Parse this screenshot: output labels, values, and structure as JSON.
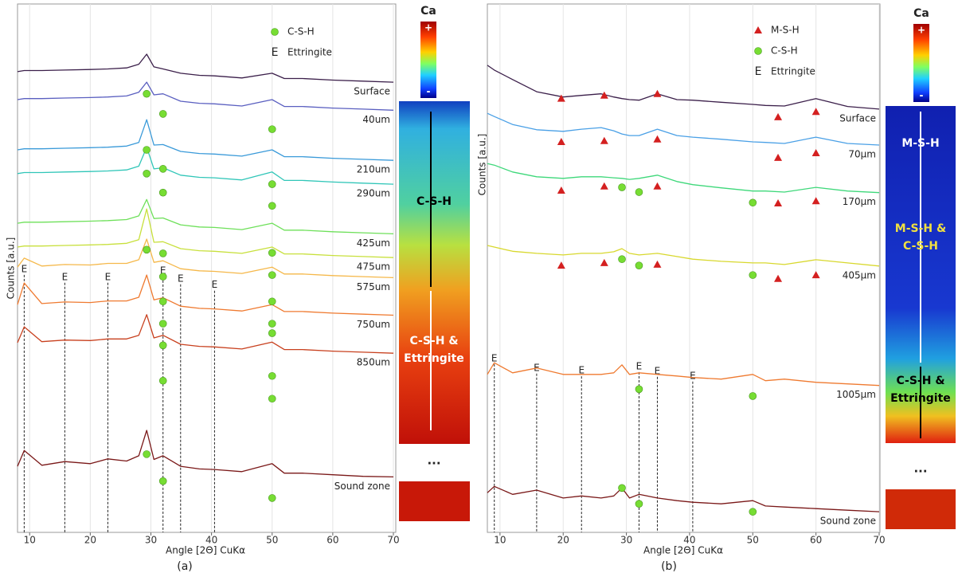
{
  "chart_data": [
    {
      "type": "line",
      "panel_label": "(a)",
      "x_label": "Angle [2Θ] CuKα",
      "y_label": "Counts [a.u.]",
      "xlim": [
        8,
        70
      ],
      "xticks": [
        10,
        20,
        30,
        40,
        50,
        60,
        70
      ],
      "ylim": [
        0,
        100
      ],
      "grid": true,
      "x": [
        8,
        9.1,
        12,
        15.8,
        20,
        22.9,
        26,
        28,
        29.3,
        30.5,
        32,
        34.9,
        38,
        40.5,
        45,
        50,
        52,
        55,
        60,
        65,
        70
      ],
      "series": [
        {
          "name": "Surface",
          "color": "#3b1f4a",
          "values": [
            87.2,
            87.4,
            87.4,
            87.5,
            87.6,
            87.7,
            87.9,
            88.6,
            90.5,
            88.1,
            87.7,
            86.9,
            86.5,
            86.4,
            86.0,
            86.9,
            85.9,
            85.9,
            85.6,
            85.4,
            85.2
          ]
        },
        {
          "name": "40um",
          "color": "#5a5fc0",
          "values": [
            81.9,
            82.1,
            82.1,
            82.2,
            82.3,
            82.4,
            82.6,
            83.3,
            85.2,
            82.8,
            83.0,
            81.6,
            81.2,
            81.1,
            80.7,
            81.9,
            80.6,
            80.6,
            80.3,
            80.1,
            79.9
          ]
        },
        {
          "name": "210um",
          "color": "#3a9ad9",
          "values": [
            72.4,
            72.6,
            72.6,
            72.7,
            72.8,
            72.9,
            73.1,
            73.8,
            78.1,
            73.3,
            73.4,
            72.1,
            71.7,
            71.6,
            71.2,
            72.4,
            71.1,
            71.1,
            70.8,
            70.6,
            70.4
          ]
        },
        {
          "name": "290um",
          "color": "#30c6b8",
          "values": [
            67.9,
            68.1,
            68.1,
            68.2,
            68.3,
            68.4,
            68.6,
            69.3,
            72.9,
            68.8,
            69.0,
            67.6,
            67.2,
            67.1,
            66.7,
            68.2,
            66.6,
            66.6,
            66.3,
            66.1,
            65.9
          ]
        },
        {
          "name": "425um",
          "color": "#6ee05a",
          "values": [
            58.5,
            58.7,
            58.7,
            58.8,
            58.9,
            59.0,
            59.2,
            59.9,
            63.0,
            59.4,
            59.5,
            58.2,
            57.8,
            57.7,
            57.3,
            58.5,
            57.2,
            57.2,
            56.9,
            56.7,
            56.5
          ]
        },
        {
          "name": "475um",
          "color": "#c8e03c",
          "values": [
            54.0,
            54.2,
            54.2,
            54.3,
            54.4,
            54.5,
            54.7,
            55.4,
            61.2,
            54.9,
            55.0,
            53.7,
            53.3,
            53.2,
            52.8,
            54.0,
            52.7,
            52.7,
            52.4,
            52.2,
            52.0
          ]
        },
        {
          "name": "575um",
          "color": "#f5b84a",
          "values": [
            50.2,
            51.9,
            50.4,
            50.7,
            50.6,
            50.9,
            50.9,
            51.6,
            55.5,
            51.1,
            51.4,
            49.9,
            49.5,
            49.4,
            49.0,
            50.2,
            48.9,
            48.9,
            48.6,
            48.4,
            48.2
          ]
        },
        {
          "name": "750um",
          "color": "#ef7a30",
          "values": [
            43.1,
            47.2,
            43.3,
            43.6,
            43.5,
            43.8,
            43.8,
            44.5,
            48.7,
            44.0,
            44.4,
            42.8,
            42.4,
            42.3,
            41.9,
            43.1,
            41.8,
            41.8,
            41.5,
            41.3,
            41.1
          ]
        },
        {
          "name": "850um",
          "color": "#c8401e",
          "values": [
            35.9,
            38.9,
            36.1,
            36.4,
            36.3,
            36.6,
            36.6,
            37.3,
            41.2,
            36.8,
            37.3,
            35.6,
            35.2,
            35.1,
            34.7,
            36.0,
            34.6,
            34.6,
            34.3,
            34.1,
            33.9
          ]
        },
        {
          "name": "Sound zone",
          "color": "#7a1818",
          "values": [
            12.5,
            15.5,
            12.7,
            13.4,
            13.0,
            13.9,
            13.5,
            14.5,
            19.3,
            13.8,
            14.5,
            12.5,
            12.0,
            11.9,
            11.5,
            13.0,
            11.2,
            11.2,
            10.9,
            10.6,
            10.5
          ]
        }
      ],
      "markers": [
        {
          "name": "C-S-H",
          "shape": "circle",
          "color": "#77dd33",
          "x": [
            29.3,
            32,
            50,
            29.3,
            32,
            29.3,
            32,
            50,
            50,
            29.3,
            32,
            50,
            32,
            50,
            32,
            50,
            32,
            50,
            32,
            50,
            32,
            50,
            50,
            29.3,
            32,
            50
          ],
          "y": [
            83.0,
            79.2,
            76.3,
            72.4,
            68.8,
            67.9,
            64.3,
            65.9,
            61.8,
            53.5,
            52.8,
            52.9,
            48.4,
            48.7,
            43.7,
            43.7,
            39.5,
            39.5,
            35.4,
            37.7,
            28.7,
            29.6,
            25.3,
            14.8,
            9.7,
            6.5
          ]
        }
      ],
      "ettringite": {
        "label": "E",
        "name": "Ettringite",
        "x": [
          9.1,
          15.8,
          22.9,
          32,
          34.9,
          40.5
        ],
        "y": [
          49.8,
          48.3,
          48.3,
          49.5,
          48.0,
          46.8
        ]
      },
      "colorbar": {
        "title": "Ca",
        "max_label": "+",
        "min_label": "-"
      },
      "map_labels": [
        {
          "lines": [
            "C-S-H"
          ],
          "color": "#000000"
        },
        {
          "lines": [
            "C-S-H &",
            "Ettringite"
          ],
          "color": "#ffffff"
        }
      ],
      "ellipsis": "..."
    },
    {
      "type": "line",
      "panel_label": "(b)",
      "x_label": "Angle [2Θ] CuKα",
      "y_label": "Counts [a.u.]",
      "xlim": [
        8,
        70
      ],
      "xticks": [
        10,
        20,
        30,
        40,
        50,
        60,
        70
      ],
      "ylim": [
        0,
        100
      ],
      "grid": true,
      "x": [
        8,
        9.1,
        12,
        15.8,
        20,
        22.9,
        26,
        28,
        29.3,
        30.5,
        32,
        34.9,
        38,
        40.5,
        45,
        50,
        52,
        55,
        60,
        65,
        70
      ],
      "series": [
        {
          "name": "Surface",
          "color": "#3b1f4a",
          "values": [
            88.4,
            87.5,
            85.7,
            83.4,
            82.4,
            82.7,
            83.0,
            82.4,
            82.1,
            81.9,
            81.8,
            83.0,
            81.9,
            81.8,
            81.4,
            81.0,
            80.8,
            80.7,
            82.1,
            80.6,
            80.1
          ]
        },
        {
          "name": "70μm",
          "color": "#4aa0e6",
          "values": [
            79.3,
            78.7,
            77.2,
            76.2,
            75.9,
            76.3,
            76.6,
            76.0,
            75.4,
            75.1,
            75.1,
            76.3,
            75.1,
            74.8,
            74.4,
            73.9,
            73.8,
            73.6,
            74.8,
            73.6,
            73.3
          ]
        },
        {
          "name": "170μm",
          "color": "#3ed87a",
          "values": [
            69.8,
            69.5,
            68.2,
            67.3,
            67.0,
            67.3,
            67.3,
            67.1,
            67.0,
            66.8,
            67.0,
            67.6,
            66.4,
            65.8,
            65.2,
            64.6,
            64.6,
            64.4,
            65.3,
            64.6,
            64.3
          ]
        },
        {
          "name": "405μm",
          "color": "#d8d82e",
          "values": [
            54.3,
            54.0,
            53.2,
            52.8,
            52.5,
            52.8,
            52.8,
            53.1,
            53.7,
            52.8,
            52.5,
            52.8,
            52.2,
            51.7,
            51.3,
            51.0,
            51.0,
            50.7,
            51.6,
            51.0,
            50.4
          ]
        },
        {
          "name": "1005μm",
          "color": "#ef7a30",
          "values": [
            29.9,
            32.1,
            30.2,
            31.1,
            29.9,
            29.9,
            29.9,
            30.2,
            31.7,
            29.9,
            30.2,
            29.9,
            29.6,
            29.3,
            29.0,
            29.9,
            28.7,
            29.0,
            28.4,
            28.1,
            27.8
          ]
        },
        {
          "name": "Sound zone",
          "color": "#7a1818",
          "values": [
            7.5,
            8.7,
            7.2,
            8.0,
            6.5,
            6.9,
            6.5,
            6.9,
            8.4,
            6.5,
            7.2,
            6.5,
            6.0,
            5.7,
            5.4,
            6.0,
            5.0,
            4.8,
            4.5,
            4.2,
            3.9
          ]
        }
      ],
      "markers": [
        {
          "name": "M-S-H",
          "shape": "triangle",
          "color": "#d42020",
          "x": [
            19.7,
            26.5,
            34.9,
            54,
            60,
            19.7,
            26.5,
            34.9,
            54,
            60,
            19.7,
            26.5,
            34.9,
            54,
            60,
            19.7,
            26.5,
            34.9,
            54,
            60
          ],
          "y": [
            82.1,
            82.7,
            83.0,
            78.6,
            79.6,
            73.9,
            74.1,
            74.4,
            70.9,
            71.8,
            64.7,
            65.5,
            65.5,
            62.3,
            62.7,
            50.5,
            51.0,
            50.7,
            48.0,
            48.7
          ]
        },
        {
          "name": "C-S-H",
          "shape": "circle",
          "color": "#77dd33",
          "x": [
            29.3,
            32,
            50,
            29.3,
            32,
            50,
            32,
            50,
            29.3,
            32,
            50
          ],
          "y": [
            65.3,
            64.4,
            62.4,
            51.7,
            50.5,
            48.7,
            27.1,
            25.8,
            8.4,
            5.4,
            3.9
          ]
        }
      ],
      "ettringite": {
        "label": "E",
        "name": "Ettringite",
        "x": [
          9.1,
          15.8,
          22.9,
          32,
          34.9,
          40.5
        ],
        "y": [
          32.9,
          31.1,
          30.6,
          31.4,
          30.5,
          29.6
        ]
      },
      "colorbar": {
        "title": "Ca",
        "max_label": "+",
        "min_label": "-"
      },
      "map_labels": [
        {
          "lines": [
            "M-S-H"
          ],
          "color": "#ffffff"
        },
        {
          "lines": [
            "M-S-H &",
            "C-S-H"
          ],
          "color": "#f0e040"
        },
        {
          "lines": [
            "C-S-H &",
            "Ettringite"
          ],
          "color": "#000000"
        }
      ],
      "ellipsis": "..."
    }
  ]
}
